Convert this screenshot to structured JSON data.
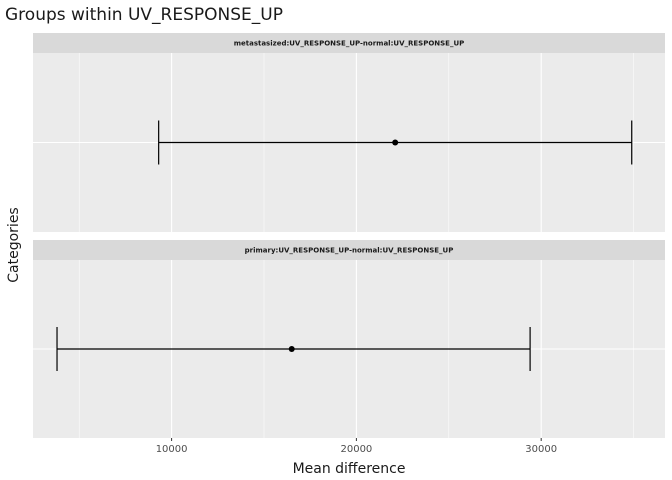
{
  "chart_data": {
    "type": "errorbar",
    "title": "Groups within UV_RESPONSE_UP",
    "xlabel": "Mean difference",
    "ylabel": "Categories",
    "xlim": [
      2500,
      36700
    ],
    "x_ticks": [
      10000,
      20000,
      30000
    ],
    "x_tick_labels": [
      "10000",
      "20000",
      "30000"
    ],
    "grid": true,
    "facets": [
      {
        "label": "metastasized:UV_RESPONSE_UP-normal:UV_RESPONSE_UP",
        "estimate": 22100,
        "lower": 9300,
        "upper": 34900
      },
      {
        "label": "primary:UV_RESPONSE_UP-normal:UV_RESPONSE_UP",
        "estimate": 16500,
        "lower": 3800,
        "upper": 29400
      }
    ],
    "colors": {
      "panel": "#ebebeb",
      "strip": "#d9d9d9",
      "grid_major": "#ffffff",
      "mark": "#000000"
    }
  }
}
